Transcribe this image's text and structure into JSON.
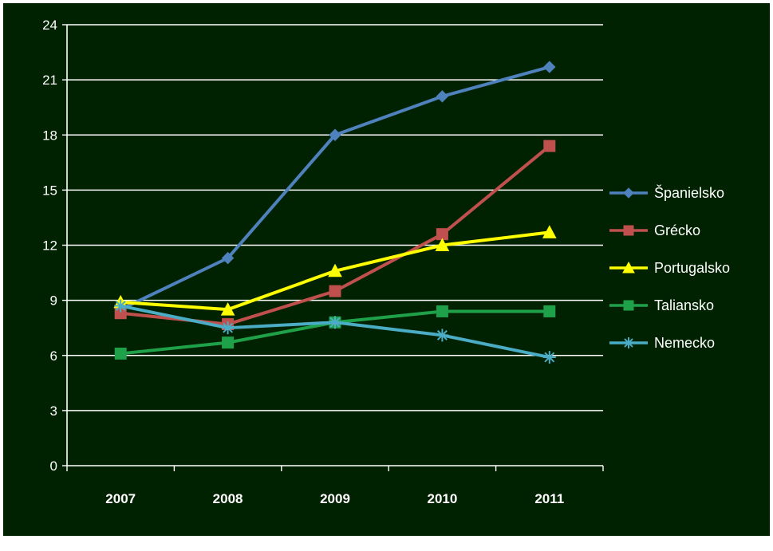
{
  "chart_data": {
    "type": "line",
    "title": "",
    "xlabel": "",
    "ylabel": "",
    "background": "#002200",
    "gridlines": true,
    "legend_position": "right",
    "categories": [
      "2007",
      "2008",
      "2009",
      "2010",
      "2011"
    ],
    "ylim": [
      0,
      24
    ],
    "yticks": [
      0,
      3,
      6,
      9,
      12,
      15,
      18,
      21,
      24
    ],
    "series": [
      {
        "name": "Španielsko",
        "values": [
          8.5,
          11.3,
          18.0,
          20.1,
          21.7
        ],
        "color": "#4f81bd",
        "marker": "diamond"
      },
      {
        "name": "Grécko",
        "values": [
          8.3,
          7.7,
          9.5,
          12.6,
          17.4
        ],
        "color": "#c0504d",
        "marker": "square"
      },
      {
        "name": "Portugalsko",
        "values": [
          8.9,
          8.5,
          10.6,
          12.0,
          12.7
        ],
        "color": "#ffff00",
        "marker": "triangle"
      },
      {
        "name": "Taliansko",
        "values": [
          6.1,
          6.7,
          7.8,
          8.4,
          8.4
        ],
        "color": "#1fa14a",
        "marker": "square"
      },
      {
        "name": "Nemecko",
        "values": [
          8.7,
          7.5,
          7.8,
          7.1,
          5.9
        ],
        "color": "#4bacc6",
        "marker": "star"
      }
    ]
  }
}
